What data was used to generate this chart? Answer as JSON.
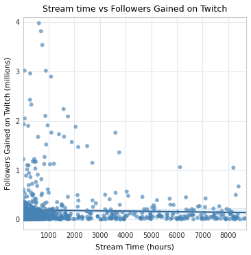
{
  "title": "Stream time vs Followers Gained on Twitch",
  "xlabel": "Stream Time (hours)",
  "ylabel": "Followers Gained on Twitch (millions)",
  "dot_color": "#4682b4",
  "line_color": "#2c5f8a",
  "ci_color": "#a8c8e8",
  "bg_color": "#ffffff",
  "grid_color": "#e0e8f0",
  "xlim": [
    0,
    8700
  ],
  "ylim": [
    -200000,
    4100000
  ],
  "seed": 42,
  "n_main": 900,
  "dot_size": 18,
  "dot_alpha": 0.65,
  "yticks": [
    0,
    1000000,
    2000000,
    3000000,
    4000000
  ],
  "xticks": [
    1000,
    2000,
    3000,
    4000,
    5000,
    6000,
    7000,
    8000
  ]
}
